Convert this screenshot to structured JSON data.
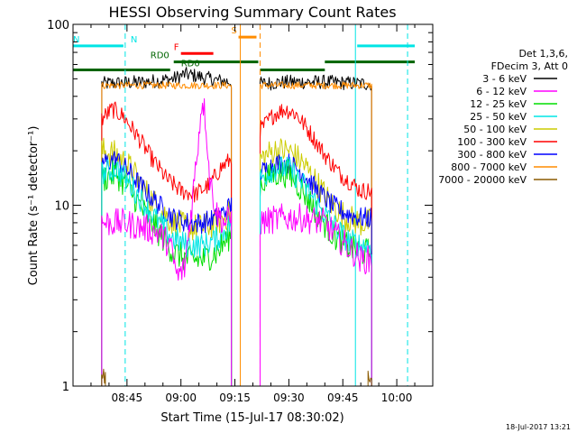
{
  "chart_data": {
    "type": "line",
    "title": "HESSI Observing Summary Count Rates",
    "xlabel": "Start Time (15-Jul-17 08:30:02)",
    "ylabel": "Count Rate (s⁻¹ detector⁻¹)",
    "ylim": [
      1,
      100
    ],
    "yscale": "log",
    "xlim_minutes_after_0830": [
      0,
      100
    ],
    "x_ticks": [
      {
        "min": 15,
        "label": "08:45"
      },
      {
        "min": 30,
        "label": "09:00"
      },
      {
        "min": 45,
        "label": "09:15"
      },
      {
        "min": 60,
        "label": "09:30"
      },
      {
        "min": 75,
        "label": "09:45"
      },
      {
        "min": 90,
        "label": "10:00"
      }
    ],
    "y_ticks": [
      {
        "value": 1,
        "label": "1"
      },
      {
        "value": 10,
        "label": "10"
      },
      {
        "value": 100,
        "label": "100"
      }
    ],
    "legend": {
      "placement": "right",
      "header": [
        "Det 1,3,6,",
        "FDecim 3, Att 0"
      ],
      "entries": [
        {
          "label": "3 - 6 keV",
          "color": "#000000"
        },
        {
          "label": "6 - 12 keV",
          "color": "#ff00ff"
        },
        {
          "label": "12 - 25 keV",
          "color": "#00dd00"
        },
        {
          "label": "25 - 50 keV",
          "color": "#00e5e5"
        },
        {
          "label": "50 - 100 keV",
          "color": "#cccc00"
        },
        {
          "label": "100 - 300 keV",
          "color": "#ff0000"
        },
        {
          "label": "300 - 800 keV",
          "color": "#0000ff"
        },
        {
          "label": "800 - 7000 keV",
          "color": "#ff8c00"
        },
        {
          "label": "7000 - 20000 keV",
          "color": "#8b5a00"
        }
      ]
    },
    "series": [
      {
        "name": "3 - 6 keV",
        "color": "#000000",
        "noise": 0.04,
        "segments": [
          [
            [
              8,
              47
            ],
            [
              20,
              48
            ],
            [
              28,
              50
            ],
            [
              31,
              53
            ],
            [
              34,
              52
            ],
            [
              40,
              49
            ],
            [
              44,
              48
            ]
          ],
          [
            [
              52,
              47
            ],
            [
              60,
              48
            ],
            [
              70,
              48
            ],
            [
              80,
              47
            ],
            [
              83,
              47
            ]
          ]
        ]
      },
      {
        "name": "800 - 7000 keV",
        "color": "#ff8c00",
        "noise": 0.02,
        "segments": [
          [
            [
              8,
              46
            ],
            [
              25,
              46
            ],
            [
              35,
              46
            ],
            [
              44,
              46
            ]
          ],
          [
            [
              52,
              46
            ],
            [
              65,
              46
            ],
            [
              75,
              46
            ],
            [
              83,
              46
            ]
          ]
        ]
      },
      {
        "name": "100 - 300 keV",
        "color": "#ff0000",
        "noise": 0.05,
        "segments": [
          [
            [
              8,
              30
            ],
            [
              11,
              34
            ],
            [
              14,
              31
            ],
            [
              18,
              24
            ],
            [
              22,
              18
            ],
            [
              26,
              14
            ],
            [
              30,
              12
            ],
            [
              34,
              11.5
            ],
            [
              38,
              13
            ],
            [
              41,
              16
            ],
            [
              44,
              18
            ]
          ],
          [
            [
              52,
              26
            ],
            [
              56,
              32
            ],
            [
              59,
              34
            ],
            [
              62,
              32
            ],
            [
              66,
              25
            ],
            [
              70,
              19
            ],
            [
              74,
              15
            ],
            [
              78,
              13
            ],
            [
              80,
              12
            ],
            [
              83,
              12
            ]
          ]
        ]
      },
      {
        "name": "50 - 100 keV",
        "color": "#cccc00",
        "noise": 0.08,
        "segments": [
          [
            [
              8,
              20
            ],
            [
              12,
              19
            ],
            [
              16,
              16
            ],
            [
              20,
              12
            ],
            [
              24,
              9.5
            ],
            [
              28,
              8
            ],
            [
              32,
              7.5
            ],
            [
              36,
              7.5
            ],
            [
              40,
              8
            ],
            [
              44,
              9
            ]
          ],
          [
            [
              52,
              18
            ],
            [
              56,
              20
            ],
            [
              60,
              20
            ],
            [
              64,
              17
            ],
            [
              68,
              13
            ],
            [
              72,
              10
            ],
            [
              76,
              8.5
            ],
            [
              80,
              8
            ],
            [
              83,
              8
            ]
          ]
        ]
      },
      {
        "name": "300 - 800 keV",
        "color": "#0000ff",
        "noise": 0.06,
        "segments": [
          [
            [
              8,
              17
            ],
            [
              12,
              18
            ],
            [
              16,
              15
            ],
            [
              20,
              12
            ],
            [
              24,
              10
            ],
            [
              28,
              8.5
            ],
            [
              32,
              8
            ],
            [
              36,
              8
            ],
            [
              40,
              8.5
            ],
            [
              44,
              10
            ]
          ],
          [
            [
              52,
              15
            ],
            [
              56,
              17
            ],
            [
              60,
              17
            ],
            [
              64,
              15
            ],
            [
              68,
              12
            ],
            [
              72,
              10
            ],
            [
              76,
              9
            ],
            [
              80,
              8.5
            ],
            [
              83,
              8.5
            ]
          ]
        ]
      },
      {
        "name": "12 - 25 keV",
        "color": "#00dd00",
        "noise": 0.08,
        "segments": [
          [
            [
              8,
              14
            ],
            [
              12,
              15
            ],
            [
              16,
              12
            ],
            [
              20,
              9
            ],
            [
              24,
              7
            ],
            [
              28,
              5.5
            ],
            [
              32,
              5
            ],
            [
              36,
              5
            ],
            [
              40,
              5.5
            ],
            [
              44,
              7
            ]
          ],
          [
            [
              52,
              13
            ],
            [
              56,
              15
            ],
            [
              60,
              15
            ],
            [
              64,
              12
            ],
            [
              68,
              9
            ],
            [
              72,
              7
            ],
            [
              76,
              6
            ],
            [
              80,
              5.5
            ],
            [
              83,
              5.5
            ]
          ]
        ]
      },
      {
        "name": "25 - 50 keV",
        "color": "#00e5e5",
        "noise": 0.07,
        "segments": [
          [
            [
              8,
              15
            ],
            [
              12,
              16
            ],
            [
              16,
              13
            ],
            [
              20,
              10
            ],
            [
              24,
              8
            ],
            [
              28,
              6.5
            ],
            [
              32,
              6
            ],
            [
              36,
              6
            ],
            [
              40,
              6.5
            ],
            [
              44,
              8
            ]
          ],
          [
            [
              52,
              14
            ],
            [
              56,
              16
            ],
            [
              60,
              16
            ],
            [
              64,
              13
            ],
            [
              68,
              10
            ],
            [
              72,
              8
            ],
            [
              76,
              6.5
            ],
            [
              80,
              6
            ],
            [
              83,
              6
            ]
          ]
        ]
      },
      {
        "name": "6 - 12 keV",
        "color": "#ff00ff",
        "noise": 0.08,
        "segments": [
          [
            [
              8,
              8
            ],
            [
              14,
              8
            ],
            [
              20,
              7.5
            ],
            [
              24,
              7
            ],
            [
              27,
              6
            ],
            [
              29,
              4
            ],
            [
              31,
              4.5
            ],
            [
              33,
              10
            ],
            [
              35,
              25
            ],
            [
              36,
              40
            ],
            [
              37,
              28
            ],
            [
              38,
              14
            ],
            [
              40,
              9
            ],
            [
              42,
              8
            ],
            [
              44,
              8.5
            ]
          ],
          [
            [
              52,
              8
            ],
            [
              58,
              8.5
            ],
            [
              64,
              8.5
            ],
            [
              70,
              8
            ],
            [
              74,
              6.5
            ],
            [
              78,
              5.5
            ],
            [
              80,
              5
            ],
            [
              83,
              5
            ]
          ]
        ]
      },
      {
        "name": "7000 - 20000 keV",
        "color": "#8b5a00",
        "noise": 0.05,
        "segments": [
          [
            [
              8,
              1.2
            ],
            [
              9,
              1.1
            ]
          ],
          [
            [
              82,
              1.1
            ],
            [
              83,
              1.2
            ]
          ]
        ]
      }
    ],
    "annotations": [
      {
        "type": "bar",
        "label": "N",
        "color": "#00e5e5",
        "y": 76,
        "x": [
          -5,
          14
        ],
        "label_x": 16
      },
      {
        "type": "bar",
        "label": "N",
        "color": "#00e5e5",
        "y": 76,
        "x": [
          79,
          95
        ],
        "label_x": null
      },
      {
        "type": "bar",
        "label": "S",
        "color": "#ff8c00",
        "y": 85,
        "x": [
          46,
          51
        ],
        "label_x": 44
      },
      {
        "type": "bar",
        "label": "F",
        "color": "#ff0000",
        "y": 69,
        "x": [
          30,
          39
        ],
        "label_x": 28
      },
      {
        "type": "bar",
        "label": "RD0",
        "color": "#006400",
        "y": 62,
        "x": [
          28,
          51.5
        ],
        "label_x": 21.5
      },
      {
        "type": "bar",
        "label": "RD0",
        "color": "#006400",
        "y": 56,
        "x": [
          -5,
          27
        ],
        "label_x": 30
      },
      {
        "type": "bar",
        "label": "",
        "color": "#006400",
        "y": 56,
        "x": [
          52,
          70
        ]
      },
      {
        "type": "bar",
        "label": "",
        "color": "#006400",
        "y": 62,
        "x": [
          70,
          95
        ]
      },
      {
        "type": "vline",
        "color": "#00e5e5",
        "x": 14.5,
        "dashed": true
      },
      {
        "type": "vline",
        "color": "#00e5e5",
        "x": 78.5,
        "dashed": false
      },
      {
        "type": "vline",
        "color": "#00e5e5",
        "x": 93,
        "dashed": true
      },
      {
        "type": "vline",
        "color": "#ff8c00",
        "x": 46.5,
        "dashed": false
      },
      {
        "type": "vline",
        "color": "#ff8c00",
        "x": 52,
        "dashed": true
      }
    ]
  },
  "timestamp": "18-Jul-2017 13:21"
}
